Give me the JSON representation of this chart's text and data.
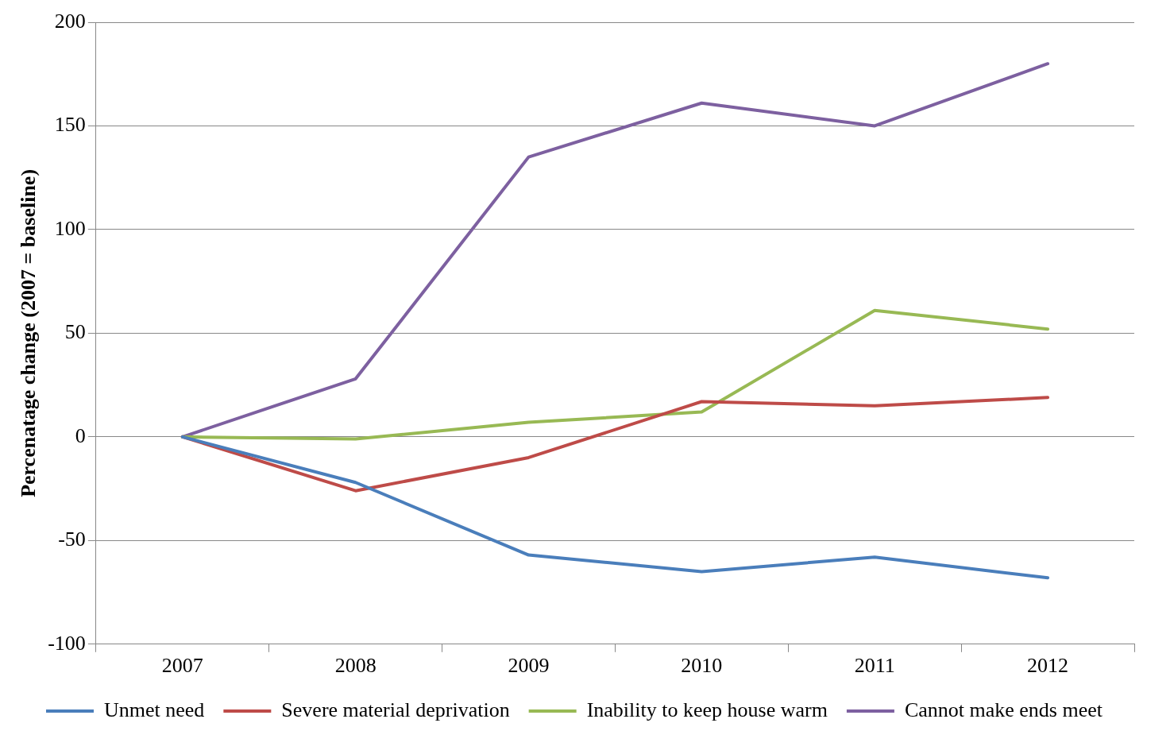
{
  "chart_data": {
    "type": "line",
    "ylabel": "Percenatage change (2007 = baseline)",
    "categories": [
      "2007",
      "2008",
      "2009",
      "2010",
      "2011",
      "2012"
    ],
    "series": [
      {
        "name": "Unmet need",
        "color": "#4a7ebb",
        "values": [
          0,
          -22,
          -57,
          -65,
          -58,
          -68
        ]
      },
      {
        "name": "Severe material deprivation",
        "color": "#be4b48",
        "values": [
          0,
          -26,
          -10,
          17,
          15,
          19
        ]
      },
      {
        "name": "Inability to keep house warm",
        "color": "#98b954",
        "values": [
          0,
          -1,
          7,
          12,
          61,
          52
        ]
      },
      {
        "name": "Cannot make ends meet",
        "color": "#7d60a0",
        "values": [
          0,
          28,
          135,
          161,
          150,
          180
        ]
      }
    ],
    "ylim": [
      -100,
      200
    ],
    "yticks": [
      -100,
      -50,
      0,
      50,
      100,
      150,
      200
    ],
    "grid": "y",
    "legend": "bottom",
    "marker": "none",
    "line_style": "solid"
  }
}
